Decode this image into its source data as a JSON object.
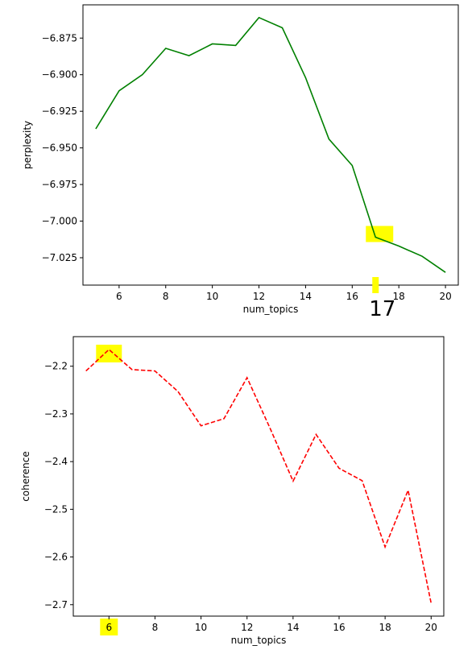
{
  "chart_data": [
    {
      "type": "line",
      "xlabel": "num_topics",
      "ylabel": "perplexity",
      "x": [
        5,
        6,
        7,
        8,
        9,
        10,
        11,
        12,
        13,
        14,
        15,
        16,
        17,
        18,
        19,
        20
      ],
      "series": [
        {
          "color": "#008000",
          "style": "solid",
          "values": [
            -6.937,
            -6.911,
            -6.9,
            -6.882,
            -6.887,
            -6.879,
            -6.88,
            -6.861,
            -6.868,
            -6.902,
            -6.944,
            -6.962,
            -7.011,
            -7.017,
            -7.024,
            -7.035
          ]
        }
      ],
      "xticks": [
        6,
        8,
        10,
        12,
        14,
        16,
        18,
        20
      ],
      "xtick_labels": [
        "6",
        "8",
        "10",
        "12",
        "14",
        "16",
        "18",
        "20"
      ],
      "yticks": [
        -6.875,
        -6.9,
        -6.925,
        -6.95,
        -6.975,
        -7.0,
        -7.025
      ],
      "ytick_labels": [
        "−6.875",
        "−6.900",
        "−6.925",
        "−6.950",
        "−6.975",
        "−7.000",
        "−7.025"
      ],
      "xlim": [
        4.45,
        20.55
      ],
      "ylim": [
        -7.0437,
        -6.8523
      ],
      "grid": false,
      "annotations": {
        "highlight_color": "#ffff00",
        "handwritten_text": "17",
        "highlight_x": 17,
        "highlight_y": -7.011
      }
    },
    {
      "type": "line",
      "xlabel": "num_topics",
      "ylabel": "coherence",
      "x": [
        5,
        6,
        7,
        8,
        9,
        10,
        11,
        12,
        13,
        14,
        15,
        16,
        17,
        18,
        19,
        20
      ],
      "series": [
        {
          "color": "#ff0000",
          "style": "dashed",
          "values": [
            -2.21,
            -2.165,
            -2.207,
            -2.21,
            -2.253,
            -2.325,
            -2.31,
            -2.224,
            -2.33,
            -2.441,
            -2.343,
            -2.414,
            -2.44,
            -2.579,
            -2.46,
            -2.697
          ]
        }
      ],
      "xticks": [
        6,
        8,
        10,
        12,
        14,
        16,
        18,
        20
      ],
      "xtick_labels": [
        "6",
        "8",
        "10",
        "12",
        "14",
        "16",
        "18",
        "20"
      ],
      "yticks": [
        -2.2,
        -2.3,
        -2.4,
        -2.5,
        -2.6,
        -2.7
      ],
      "ytick_labels": [
        "−2.2",
        "−2.3",
        "−2.4",
        "−2.5",
        "−2.6",
        "−2.7"
      ],
      "xlim": [
        4.45,
        20.55
      ],
      "ylim": [
        -2.724,
        -2.138
      ],
      "grid": false,
      "annotations": {
        "highlight_color": "#ffff00",
        "highlight_x": 6,
        "highlight_y": -2.165,
        "highlight_tick": 6
      }
    }
  ]
}
